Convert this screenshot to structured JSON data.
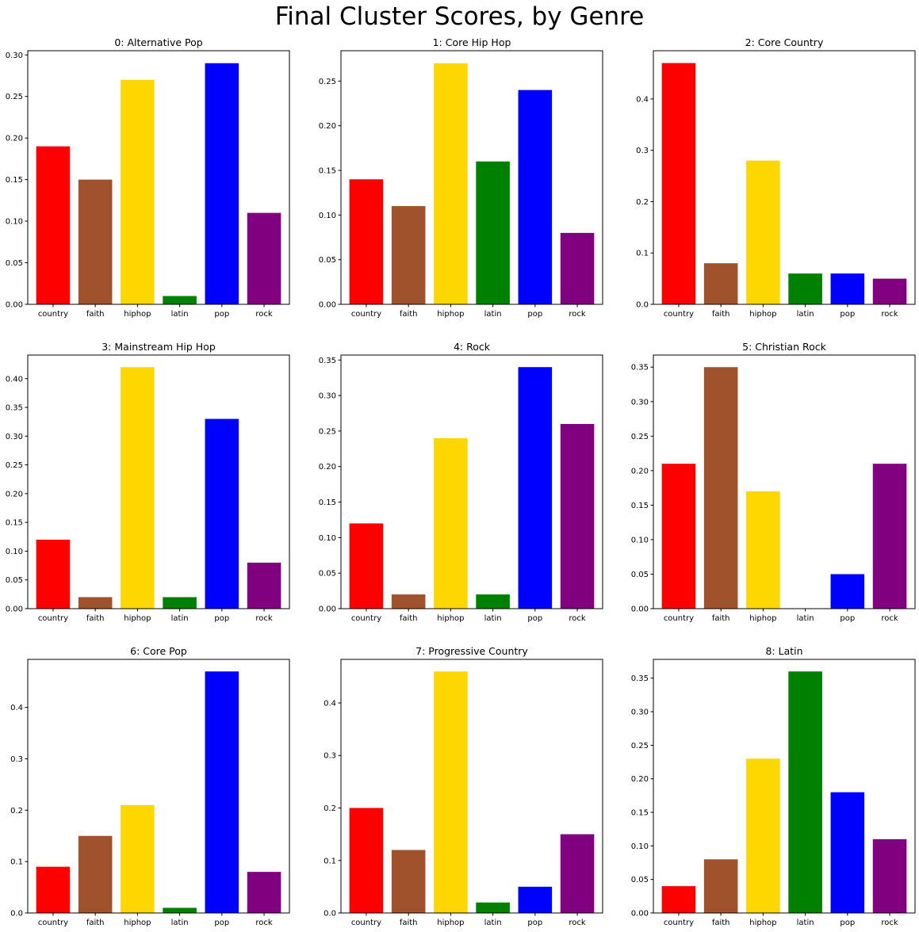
{
  "figure": {
    "title": "Final Cluster Scores, by Genre"
  },
  "colors": {
    "country": "#ff0000",
    "faith": "#a0522d",
    "hiphop": "#ffd700",
    "latin": "#008000",
    "pop": "#0000ff",
    "rock": "#800080"
  },
  "chart_data": [
    {
      "type": "bar",
      "title": "0: Alternative Pop",
      "categories": [
        "country",
        "faith",
        "hiphop",
        "latin",
        "pop",
        "rock"
      ],
      "values": [
        0.19,
        0.15,
        0.27,
        0.01,
        0.29,
        0.11
      ],
      "ylim": [
        0,
        0.305
      ],
      "yticks": [
        0.0,
        0.05,
        0.1,
        0.15,
        0.2,
        0.25,
        0.3
      ],
      "ytick_labels": [
        "0.00",
        "0.05",
        "0.10",
        "0.15",
        "0.20",
        "0.25",
        "0.30"
      ],
      "grid": false
    },
    {
      "type": "bar",
      "title": "1: Core Hip Hop",
      "categories": [
        "country",
        "faith",
        "hiphop",
        "latin",
        "pop",
        "rock"
      ],
      "values": [
        0.14,
        0.11,
        0.27,
        0.16,
        0.24,
        0.08
      ],
      "ylim": [
        0,
        0.284
      ],
      "yticks": [
        0.0,
        0.05,
        0.1,
        0.15,
        0.2,
        0.25
      ],
      "ytick_labels": [
        "0.00",
        "0.05",
        "0.10",
        "0.15",
        "0.20",
        "0.25"
      ],
      "grid": false
    },
    {
      "type": "bar",
      "title": "2: Core Country",
      "categories": [
        "country",
        "faith",
        "hiphop",
        "latin",
        "pop",
        "rock"
      ],
      "values": [
        0.47,
        0.08,
        0.28,
        0.06,
        0.06,
        0.05
      ],
      "ylim": [
        0,
        0.494
      ],
      "yticks": [
        0.0,
        0.1,
        0.2,
        0.3,
        0.4
      ],
      "ytick_labels": [
        "0.0",
        "0.1",
        "0.2",
        "0.3",
        "0.4"
      ],
      "grid": false
    },
    {
      "type": "bar",
      "title": "3: Mainstream Hip Hop",
      "categories": [
        "country",
        "faith",
        "hiphop",
        "latin",
        "pop",
        "rock"
      ],
      "values": [
        0.12,
        0.02,
        0.42,
        0.02,
        0.33,
        0.08
      ],
      "ylim": [
        0,
        0.441
      ],
      "yticks": [
        0.0,
        0.05,
        0.1,
        0.15,
        0.2,
        0.25,
        0.3,
        0.35,
        0.4
      ],
      "ytick_labels": [
        "0.00",
        "0.05",
        "0.10",
        "0.15",
        "0.20",
        "0.25",
        "0.30",
        "0.35",
        "0.40"
      ],
      "grid": false
    },
    {
      "type": "bar",
      "title": "4: Rock",
      "categories": [
        "country",
        "faith",
        "hiphop",
        "latin",
        "pop",
        "rock"
      ],
      "values": [
        0.12,
        0.02,
        0.24,
        0.02,
        0.34,
        0.26
      ],
      "ylim": [
        0,
        0.357
      ],
      "yticks": [
        0.0,
        0.05,
        0.1,
        0.15,
        0.2,
        0.25,
        0.3,
        0.35
      ],
      "ytick_labels": [
        "0.00",
        "0.05",
        "0.10",
        "0.15",
        "0.20",
        "0.25",
        "0.30",
        "0.35"
      ],
      "grid": false
    },
    {
      "type": "bar",
      "title": "5: Christian Rock",
      "categories": [
        "country",
        "faith",
        "hiphop",
        "latin",
        "pop",
        "rock"
      ],
      "values": [
        0.21,
        0.35,
        0.17,
        0.0,
        0.05,
        0.21
      ],
      "ylim": [
        0,
        0.3675
      ],
      "yticks": [
        0.0,
        0.05,
        0.1,
        0.15,
        0.2,
        0.25,
        0.3,
        0.35
      ],
      "ytick_labels": [
        "0.00",
        "0.05",
        "0.10",
        "0.15",
        "0.20",
        "0.25",
        "0.30",
        "0.35"
      ],
      "grid": false
    },
    {
      "type": "bar",
      "title": "6: Core Pop",
      "categories": [
        "country",
        "faith",
        "hiphop",
        "latin",
        "pop",
        "rock"
      ],
      "values": [
        0.09,
        0.15,
        0.21,
        0.01,
        0.47,
        0.08
      ],
      "ylim": [
        0,
        0.4935
      ],
      "yticks": [
        0.0,
        0.1,
        0.2,
        0.3,
        0.4
      ],
      "ytick_labels": [
        "0.0",
        "0.1",
        "0.2",
        "0.3",
        "0.4"
      ],
      "grid": false
    },
    {
      "type": "bar",
      "title": "7: Progressive Country",
      "categories": [
        "country",
        "faith",
        "hiphop",
        "latin",
        "pop",
        "rock"
      ],
      "values": [
        0.2,
        0.12,
        0.46,
        0.02,
        0.05,
        0.15
      ],
      "ylim": [
        0,
        0.483
      ],
      "yticks": [
        0.0,
        0.1,
        0.2,
        0.3,
        0.4
      ],
      "ytick_labels": [
        "0.0",
        "0.1",
        "0.2",
        "0.3",
        "0.4"
      ],
      "grid": false
    },
    {
      "type": "bar",
      "title": "8: Latin",
      "categories": [
        "country",
        "faith",
        "hiphop",
        "latin",
        "pop",
        "rock"
      ],
      "values": [
        0.04,
        0.08,
        0.23,
        0.36,
        0.18,
        0.11
      ],
      "ylim": [
        0,
        0.378
      ],
      "yticks": [
        0.0,
        0.05,
        0.1,
        0.15,
        0.2,
        0.25,
        0.3,
        0.35
      ],
      "ytick_labels": [
        "0.00",
        "0.05",
        "0.10",
        "0.15",
        "0.20",
        "0.25",
        "0.30",
        "0.35"
      ],
      "grid": false
    }
  ]
}
